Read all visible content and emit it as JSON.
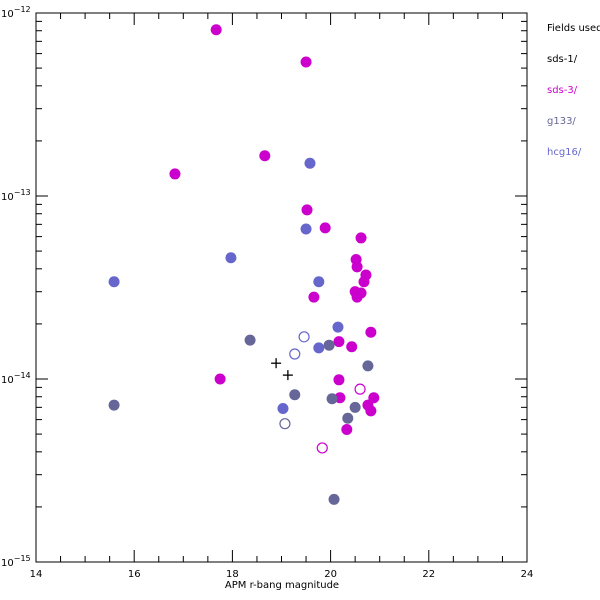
{
  "chart_data": {
    "type": "scatter",
    "title": "",
    "xlabel": "APM r-bang magnitude",
    "ylabel": "",
    "xlim": [
      14,
      24
    ],
    "ylim": [
      1e-15,
      1e-12
    ],
    "yscale": "log",
    "xticks": [
      "14",
      "16",
      "18",
      "20",
      "22",
      "24"
    ],
    "yticks": [
      {
        "base": "10",
        "exp": "−15",
        "value": 1e-15
      },
      {
        "base": "10",
        "exp": "−14",
        "value": 1e-14
      },
      {
        "base": "10",
        "exp": "−13",
        "value": 1e-13
      },
      {
        "base": "10",
        "exp": "−12",
        "value": 1e-12
      }
    ],
    "legend": {
      "title": "Fields used",
      "placement": "right-outside"
    },
    "series": [
      {
        "name": "sds-1/",
        "color": "#000000",
        "marker": "plus",
        "filled": [
          [
            18.89,
            1.22e-14
          ],
          [
            19.13,
            1.05e-14
          ]
        ],
        "open": []
      },
      {
        "name": "sds-3/",
        "color": "#cc00cc",
        "marker": "circle",
        "filled": [
          [
            17.67,
            8.1e-13
          ],
          [
            19.5,
            5.4e-13
          ],
          [
            18.66,
            1.66e-13
          ],
          [
            16.83,
            1.32e-13
          ],
          [
            19.52,
            8.4e-14
          ],
          [
            19.89,
            6.7e-14
          ],
          [
            20.62,
            5.9e-14
          ],
          [
            20.52,
            4.5e-14
          ],
          [
            20.54,
            4.1e-14
          ],
          [
            20.72,
            3.7e-14
          ],
          [
            20.68,
            3.4e-14
          ],
          [
            20.5,
            3e-14
          ],
          [
            20.62,
            2.95e-14
          ],
          [
            20.54,
            2.8e-14
          ],
          [
            19.66,
            2.8e-14
          ],
          [
            20.82,
            1.8e-14
          ],
          [
            20.17,
            1.6e-14
          ],
          [
            20.43,
            1.5e-14
          ],
          [
            17.75,
            1e-14
          ],
          [
            20.17,
            9.9e-15
          ],
          [
            20.88,
            7.9e-15
          ],
          [
            20.19,
            7.9e-15
          ],
          [
            20.76,
            7.2e-15
          ],
          [
            20.82,
            6.7e-15
          ],
          [
            20.33,
            5.3e-15
          ]
        ],
        "open": [
          [
            20.6,
            8.8e-15
          ],
          [
            19.83,
            4.2e-15
          ]
        ]
      },
      {
        "name": "g133/",
        "color": "#666699",
        "marker": "circle",
        "filled": [
          [
            18.36,
            1.63e-14
          ],
          [
            19.97,
            1.53e-14
          ],
          [
            20.76,
            1.18e-14
          ],
          [
            19.27,
            8.2e-15
          ],
          [
            20.03,
            7.8e-15
          ],
          [
            20.5,
            7e-15
          ],
          [
            20.35,
            6.1e-15
          ],
          [
            15.59,
            7.2e-15
          ],
          [
            20.07,
            2.2e-15
          ]
        ],
        "open": [
          [
            19.07,
            5.7e-15
          ]
        ]
      },
      {
        "name": "hcg16/",
        "color": "#6666cc",
        "marker": "circle",
        "filled": [
          [
            19.58,
            1.51e-13
          ],
          [
            19.5,
            6.6e-14
          ],
          [
            17.97,
            4.6e-14
          ],
          [
            19.76,
            3.4e-14
          ],
          [
            15.59,
            3.4e-14
          ],
          [
            20.15,
            1.92e-14
          ],
          [
            19.76,
            1.48e-14
          ],
          [
            19.03,
            6.9e-15
          ]
        ],
        "open": [
          [
            19.46,
            1.7e-14
          ],
          [
            19.27,
            1.37e-14
          ]
        ]
      }
    ]
  }
}
